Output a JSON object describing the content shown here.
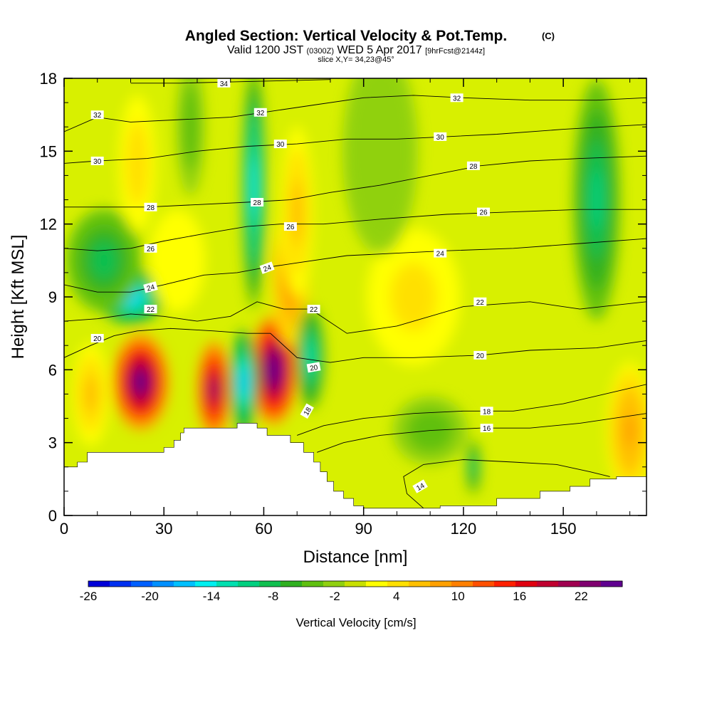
{
  "chart_data": {
    "type": "heatmap",
    "title": "Angled Section: Vertical Velocity & Pot.Temp.",
    "title_mark": "(C)",
    "subtitle": {
      "prefix": "Valid 1200 JST",
      "zulu": "(0300Z)",
      "date": "WED 5 Apr 2017",
      "fcst": "[9hrFcst@2144z]"
    },
    "slice_label": "slice X,Y= 34,23@45°",
    "xlabel": "Distance [nm]",
    "ylabel": "Height [Kft MSL]",
    "xlim": [
      0,
      175
    ],
    "ylim": [
      0,
      18
    ],
    "x_ticks": [
      "0",
      "30",
      "60",
      "90",
      "120",
      "150"
    ],
    "y_ticks": [
      "0",
      "3",
      "6",
      "9",
      "12",
      "15",
      "18"
    ],
    "colorbar": {
      "label": "Vertical Velocity [cm/s]",
      "range": [
        -26,
        26
      ],
      "tick_labels": [
        "-26",
        "-20",
        "-14",
        "-8",
        "-2",
        "4",
        "10",
        "16",
        "22"
      ],
      "colors": [
        "#0000d8",
        "#0030f0",
        "#0060ff",
        "#0090ff",
        "#00c0ff",
        "#00f0f0",
        "#00e0b0",
        "#00d080",
        "#10c050",
        "#30b020",
        "#60c010",
        "#90d010",
        "#c8e000",
        "#ffff00",
        "#ffe000",
        "#ffc000",
        "#ffa000",
        "#ff8000",
        "#ff5000",
        "#ff2000",
        "#e00010",
        "#c00030",
        "#a00050",
        "#800070",
        "#600090"
      ]
    },
    "velocity_cells": [
      {
        "x": 23,
        "y": 5.5,
        "sx": 6,
        "sy": 1.4,
        "v": 24
      },
      {
        "x": 45,
        "y": 5.2,
        "sx": 3.5,
        "sy": 1.4,
        "v": 22
      },
      {
        "x": 63,
        "y": 6.0,
        "sx": 5,
        "sy": 1.6,
        "v": 26
      },
      {
        "x": 68,
        "y": 9.8,
        "sx": 4,
        "sy": 2.0,
        "v": 10
      },
      {
        "x": 70,
        "y": 12.5,
        "sx": 3.5,
        "sy": 2.5,
        "v": 6
      },
      {
        "x": 54,
        "y": 5.5,
        "sx": 3,
        "sy": 1.5,
        "v": -16
      },
      {
        "x": 57,
        "y": 13.5,
        "sx": 2.5,
        "sy": 3.5,
        "v": -14
      },
      {
        "x": 20,
        "y": 9.0,
        "sx": 7,
        "sy": 0.8,
        "v": -16
      },
      {
        "x": 12,
        "y": 10.5,
        "sx": 8,
        "sy": 1.5,
        "v": -9
      },
      {
        "x": 74,
        "y": 6.5,
        "sx": 3,
        "sy": 1.5,
        "v": -12
      },
      {
        "x": 160,
        "y": 13.0,
        "sx": 5,
        "sy": 3.5,
        "v": -10
      },
      {
        "x": 123,
        "y": 2.0,
        "sx": 1.5,
        "sy": 0.8,
        "v": -10
      },
      {
        "x": 22,
        "y": 14.5,
        "sx": 4,
        "sy": 2.0,
        "v": 5
      },
      {
        "x": 34,
        "y": 10.5,
        "sx": 6,
        "sy": 1.5,
        "v": 3
      },
      {
        "x": 105,
        "y": 9.0,
        "sx": 10,
        "sy": 2.0,
        "v": 4
      },
      {
        "x": 170,
        "y": 3.5,
        "sx": 5,
        "sy": 2.0,
        "v": 8
      },
      {
        "x": 8,
        "y": 5.0,
        "sx": 4,
        "sy": 1.5,
        "v": 6
      },
      {
        "x": 110,
        "y": 3.5,
        "sx": 8,
        "sy": 1.0,
        "v": -5
      },
      {
        "x": 95,
        "y": 15.0,
        "sx": 8,
        "sy": 3.0,
        "v": -3
      },
      {
        "x": 38,
        "y": 16.0,
        "sx": 3,
        "sy": 2.0,
        "v": -5
      }
    ],
    "terrain": [
      [
        0,
        2.0
      ],
      [
        4,
        2.0
      ],
      [
        4,
        2.2
      ],
      [
        7,
        2.2
      ],
      [
        7,
        2.6
      ],
      [
        30,
        2.6
      ],
      [
        30,
        2.8
      ],
      [
        33,
        2.8
      ],
      [
        33,
        3.1
      ],
      [
        35,
        3.1
      ],
      [
        35,
        3.4
      ],
      [
        36,
        3.4
      ],
      [
        36,
        3.6
      ],
      [
        52,
        3.6
      ],
      [
        52,
        3.8
      ],
      [
        58,
        3.8
      ],
      [
        58,
        3.6
      ],
      [
        61,
        3.6
      ],
      [
        61,
        3.3
      ],
      [
        68,
        3.3
      ],
      [
        68,
        3.0
      ],
      [
        72,
        3.0
      ],
      [
        72,
        2.6
      ],
      [
        75,
        2.6
      ],
      [
        75,
        2.2
      ],
      [
        77,
        2.2
      ],
      [
        77,
        1.8
      ],
      [
        79,
        1.8
      ],
      [
        79,
        1.4
      ],
      [
        81,
        1.4
      ],
      [
        81,
        1.0
      ],
      [
        84,
        1.0
      ],
      [
        84,
        0.7
      ],
      [
        87,
        0.7
      ],
      [
        87,
        0.4
      ],
      [
        90,
        0.4
      ],
      [
        90,
        0.3
      ],
      [
        113,
        0.3
      ],
      [
        113,
        0.4
      ],
      [
        130,
        0.4
      ],
      [
        130,
        0.7
      ],
      [
        143,
        0.7
      ],
      [
        143,
        1.0
      ],
      [
        152,
        1.0
      ],
      [
        152,
        1.2
      ],
      [
        158,
        1.2
      ],
      [
        158,
        1.5
      ],
      [
        166,
        1.5
      ],
      [
        166,
        1.6
      ],
      [
        175,
        1.6
      ]
    ],
    "theta_contours": [
      {
        "value": 14,
        "pts": [
          [
            108,
            0.3
          ],
          [
            103,
            0.9
          ],
          [
            102,
            1.6
          ],
          [
            108,
            2.1
          ],
          [
            120,
            2.3
          ],
          [
            135,
            2.2
          ],
          [
            148,
            2.1
          ],
          [
            158,
            1.8
          ],
          [
            164,
            1.6
          ]
        ],
        "label_at": [
          107,
          1.2
        ],
        "label_angle": -30
      },
      {
        "value": 16,
        "pts": [
          [
            76,
            2.6
          ],
          [
            84,
            3.0
          ],
          [
            95,
            3.3
          ],
          [
            110,
            3.5
          ],
          [
            125,
            3.6
          ],
          [
            140,
            3.6
          ],
          [
            155,
            3.8
          ],
          [
            175,
            4.2
          ]
        ],
        "label_at": [
          127,
          3.6
        ],
        "label_angle": 0
      },
      {
        "value": 18,
        "pts": [
          [
            70,
            3.3
          ],
          [
            78,
            3.7
          ],
          [
            90,
            4.0
          ],
          [
            105,
            4.2
          ],
          [
            120,
            4.3
          ],
          [
            135,
            4.3
          ],
          [
            150,
            4.6
          ],
          [
            175,
            5.4
          ]
        ],
        "label_at": [
          127,
          4.3
        ],
        "label_angle": 0
      },
      {
        "value": 20,
        "pts": [
          [
            0,
            6.5
          ],
          [
            8,
            7.0
          ],
          [
            15,
            7.4
          ],
          [
            22,
            7.6
          ],
          [
            32,
            7.7
          ],
          [
            45,
            7.6
          ],
          [
            55,
            7.5
          ],
          [
            62,
            7.5
          ],
          [
            70,
            6.5
          ],
          [
            80,
            6.3
          ],
          [
            90,
            6.5
          ],
          [
            105,
            6.5
          ],
          [
            125,
            6.6
          ],
          [
            140,
            6.8
          ],
          [
            160,
            6.9
          ],
          [
            175,
            7.2
          ]
        ],
        "label_at": [
          125,
          6.6
        ],
        "label_angle": 0
      },
      {
        "value": 22,
        "pts": [
          [
            0,
            8.0
          ],
          [
            10,
            8.1
          ],
          [
            20,
            8.3
          ],
          [
            30,
            8.2
          ],
          [
            40,
            8.0
          ],
          [
            50,
            8.2
          ],
          [
            58,
            8.8
          ],
          [
            66,
            8.5
          ],
          [
            74,
            8.5
          ],
          [
            85,
            7.5
          ],
          [
            100,
            7.8
          ],
          [
            120,
            8.6
          ],
          [
            140,
            8.8
          ],
          [
            155,
            8.5
          ],
          [
            175,
            8.8
          ]
        ],
        "label_at": [
          125,
          8.8
        ],
        "label_angle": 0
      },
      {
        "value": 24,
        "pts": [
          [
            0,
            9.5
          ],
          [
            10,
            9.2
          ],
          [
            20,
            9.2
          ],
          [
            30,
            9.5
          ],
          [
            42,
            9.9
          ],
          [
            52,
            10.0
          ],
          [
            60,
            10.2
          ],
          [
            70,
            10.4
          ],
          [
            85,
            10.7
          ],
          [
            100,
            10.8
          ],
          [
            115,
            10.9
          ],
          [
            135,
            11.0
          ],
          [
            155,
            11.2
          ],
          [
            175,
            11.4
          ]
        ],
        "label_at": [
          113,
          10.8
        ],
        "label_angle": 0
      },
      {
        "value": 26,
        "pts": [
          [
            0,
            11.0
          ],
          [
            10,
            10.9
          ],
          [
            20,
            11.0
          ],
          [
            30,
            11.3
          ],
          [
            42,
            11.6
          ],
          [
            55,
            11.9
          ],
          [
            65,
            12.0
          ],
          [
            78,
            12.0
          ],
          [
            95,
            12.2
          ],
          [
            115,
            12.4
          ],
          [
            135,
            12.5
          ],
          [
            155,
            12.6
          ],
          [
            175,
            12.6
          ]
        ],
        "label_at": [
          126,
          12.5
        ],
        "label_angle": 0
      },
      {
        "value": 28,
        "pts": [
          [
            0,
            12.7
          ],
          [
            12,
            12.7
          ],
          [
            25,
            12.7
          ],
          [
            40,
            12.8
          ],
          [
            55,
            12.9
          ],
          [
            68,
            13.0
          ],
          [
            80,
            13.3
          ],
          [
            95,
            13.6
          ],
          [
            110,
            14.0
          ],
          [
            125,
            14.4
          ],
          [
            140,
            14.6
          ],
          [
            155,
            14.7
          ],
          [
            175,
            14.8
          ]
        ],
        "label_at": [
          123,
          14.4
        ],
        "label_angle": 0
      },
      {
        "value": 30,
        "pts": [
          [
            0,
            14.5
          ],
          [
            10,
            14.6
          ],
          [
            25,
            14.7
          ],
          [
            40,
            15.0
          ],
          [
            55,
            15.2
          ],
          [
            70,
            15.3
          ],
          [
            85,
            15.5
          ],
          [
            100,
            15.5
          ],
          [
            115,
            15.6
          ],
          [
            130,
            15.7
          ],
          [
            150,
            15.9
          ],
          [
            175,
            16.1
          ]
        ],
        "label_at": [
          113,
          15.6
        ],
        "label_angle": 0
      },
      {
        "value": 32,
        "pts": [
          [
            0,
            15.8
          ],
          [
            10,
            16.4
          ],
          [
            20,
            16.2
          ],
          [
            35,
            16.3
          ],
          [
            50,
            16.4
          ],
          [
            60,
            16.6
          ],
          [
            75,
            16.9
          ],
          [
            90,
            17.2
          ],
          [
            105,
            17.3
          ],
          [
            120,
            17.2
          ],
          [
            140,
            17.1
          ],
          [
            160,
            17.1
          ],
          [
            175,
            17.2
          ]
        ],
        "label_at": [
          118,
          17.2
        ],
        "label_angle": 0
      },
      {
        "value": 34,
        "pts": [
          [
            20,
            17.8
          ],
          [
            35,
            17.8
          ],
          [
            50,
            17.85
          ],
          [
            65,
            17.9
          ],
          [
            80,
            17.95
          ]
        ],
        "label_at": [
          48,
          17.8
        ],
        "label_angle": 0
      }
    ],
    "extra_labels": [
      {
        "text": "32",
        "at": [
          10,
          16.5
        ],
        "angle": 0
      },
      {
        "text": "30",
        "at": [
          10,
          14.6
        ],
        "angle": 0
      },
      {
        "text": "28",
        "at": [
          26,
          12.7
        ],
        "angle": 0
      },
      {
        "text": "26",
        "at": [
          26,
          11.0
        ],
        "angle": 0
      },
      {
        "text": "24",
        "at": [
          26,
          9.4
        ],
        "angle": -15
      },
      {
        "text": "22",
        "at": [
          26,
          8.5
        ],
        "angle": 0
      },
      {
        "text": "20",
        "at": [
          10,
          7.3
        ],
        "angle": 0
      },
      {
        "text": "32",
        "at": [
          59,
          16.6
        ],
        "angle": 0
      },
      {
        "text": "30",
        "at": [
          65,
          15.3
        ],
        "angle": 0
      },
      {
        "text": "28",
        "at": [
          58,
          12.9
        ],
        "angle": 0
      },
      {
        "text": "26",
        "at": [
          68,
          11.9
        ],
        "angle": 0
      },
      {
        "text": "24",
        "at": [
          61,
          10.2
        ],
        "angle": -20
      },
      {
        "text": "22",
        "at": [
          75,
          8.5
        ],
        "angle": 0
      },
      {
        "text": "20",
        "at": [
          75,
          6.1
        ],
        "angle": -10
      },
      {
        "text": "18",
        "at": [
          73,
          4.3
        ],
        "angle": -60
      }
    ],
    "grid": false
  }
}
